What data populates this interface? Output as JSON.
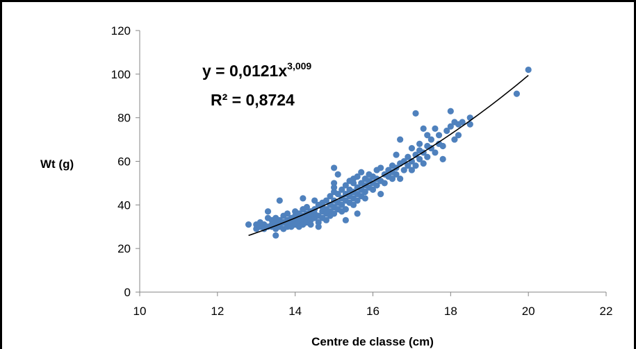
{
  "chart_data": {
    "type": "scatter",
    "title": "",
    "xlabel": "Centre de classe (cm)",
    "ylabel": "Wt (g)",
    "xlim": [
      10,
      22
    ],
    "ylim": [
      0,
      120
    ],
    "x_ticks": [
      "10",
      "12",
      "14",
      "16",
      "18",
      "20",
      "22"
    ],
    "y_ticks": [
      "0",
      "20",
      "40",
      "60",
      "80",
      "100",
      "120"
    ],
    "grid": false,
    "legend": "none",
    "marker_color": "#4F81BD",
    "trendline_color": "#000000",
    "annotations": {
      "equation_base": "y = 0,0121x",
      "equation_exponent": "3,009",
      "r2_label": "R² = 0,8724"
    },
    "trendline": {
      "type": "power",
      "a": 0.0121,
      "b": 3.009,
      "x_range": [
        12.8,
        20
      ]
    },
    "series": [
      {
        "points": [
          [
            12.8,
            31
          ],
          [
            13.0,
            29
          ],
          [
            13.0,
            31
          ],
          [
            13.1,
            30
          ],
          [
            13.1,
            32
          ],
          [
            13.2,
            31
          ],
          [
            13.2,
            29
          ],
          [
            13.3,
            34
          ],
          [
            13.3,
            30
          ],
          [
            13.3,
            37
          ],
          [
            13.4,
            33
          ],
          [
            13.4,
            31
          ],
          [
            13.4,
            30
          ],
          [
            13.5,
            32
          ],
          [
            13.5,
            29
          ],
          [
            13.5,
            26
          ],
          [
            13.5,
            34
          ],
          [
            13.6,
            42
          ],
          [
            13.6,
            31
          ],
          [
            13.6,
            33
          ],
          [
            13.6,
            30
          ],
          [
            13.7,
            32
          ],
          [
            13.7,
            35
          ],
          [
            13.7,
            29
          ],
          [
            13.8,
            31
          ],
          [
            13.8,
            33
          ],
          [
            13.8,
            36
          ],
          [
            13.8,
            30
          ],
          [
            13.9,
            34
          ],
          [
            13.9,
            32
          ],
          [
            13.9,
            30
          ],
          [
            14.0,
            31
          ],
          [
            14.0,
            35
          ],
          [
            14.0,
            33
          ],
          [
            14.0,
            37
          ],
          [
            14.1,
            32
          ],
          [
            14.1,
            34
          ],
          [
            14.1,
            30
          ],
          [
            14.1,
            36
          ],
          [
            14.2,
            33
          ],
          [
            14.2,
            38
          ],
          [
            14.2,
            31
          ],
          [
            14.2,
            35
          ],
          [
            14.2,
            43
          ],
          [
            14.3,
            32
          ],
          [
            14.3,
            36
          ],
          [
            14.3,
            34
          ],
          [
            14.3,
            39
          ],
          [
            14.4,
            33
          ],
          [
            14.4,
            37
          ],
          [
            14.4,
            35
          ],
          [
            14.4,
            31
          ],
          [
            14.5,
            38
          ],
          [
            14.5,
            34
          ],
          [
            14.5,
            42
          ],
          [
            14.5,
            36
          ],
          [
            14.6,
            32
          ],
          [
            14.6,
            40
          ],
          [
            14.6,
            35
          ],
          [
            14.6,
            30
          ],
          [
            14.7,
            39
          ],
          [
            14.7,
            37
          ],
          [
            14.7,
            41
          ],
          [
            14.7,
            34
          ],
          [
            14.8,
            38
          ],
          [
            14.8,
            36
          ],
          [
            14.8,
            42
          ],
          [
            14.8,
            33
          ],
          [
            14.9,
            40
          ],
          [
            14.9,
            37
          ],
          [
            14.9,
            44
          ],
          [
            14.9,
            35
          ],
          [
            15.0,
            39
          ],
          [
            15.0,
            42
          ],
          [
            15.0,
            46
          ],
          [
            15.0,
            57
          ],
          [
            15.0,
            48
          ],
          [
            15.0,
            36
          ],
          [
            15.0,
            50
          ],
          [
            15.1,
            41
          ],
          [
            15.1,
            38
          ],
          [
            15.1,
            45
          ],
          [
            15.1,
            54
          ],
          [
            15.2,
            40
          ],
          [
            15.2,
            43
          ],
          [
            15.2,
            47
          ],
          [
            15.2,
            37
          ],
          [
            15.3,
            42
          ],
          [
            15.3,
            45
          ],
          [
            15.3,
            49
          ],
          [
            15.3,
            38
          ],
          [
            15.3,
            33
          ],
          [
            15.4,
            44
          ],
          [
            15.4,
            41
          ],
          [
            15.4,
            47
          ],
          [
            15.4,
            51
          ],
          [
            15.5,
            43
          ],
          [
            15.5,
            46
          ],
          [
            15.5,
            50
          ],
          [
            15.5,
            40
          ],
          [
            15.5,
            52
          ],
          [
            15.6,
            45
          ],
          [
            15.6,
            48
          ],
          [
            15.6,
            53
          ],
          [
            15.6,
            42
          ],
          [
            15.6,
            36
          ],
          [
            15.7,
            47
          ],
          [
            15.7,
            44
          ],
          [
            15.7,
            50
          ],
          [
            15.7,
            55
          ],
          [
            15.8,
            46
          ],
          [
            15.8,
            49
          ],
          [
            15.8,
            52
          ],
          [
            15.8,
            43
          ],
          [
            15.9,
            48
          ],
          [
            15.9,
            51
          ],
          [
            15.9,
            54
          ],
          [
            16.0,
            50
          ],
          [
            16.0,
            47
          ],
          [
            16.0,
            53
          ],
          [
            16.1,
            49
          ],
          [
            16.1,
            52
          ],
          [
            16.1,
            56
          ],
          [
            16.2,
            45
          ],
          [
            16.2,
            51
          ],
          [
            16.2,
            57
          ],
          [
            16.3,
            50
          ],
          [
            16.3,
            54
          ],
          [
            16.4,
            53
          ],
          [
            16.4,
            56
          ],
          [
            16.5,
            52
          ],
          [
            16.5,
            55
          ],
          [
            16.5,
            58
          ],
          [
            16.6,
            54
          ],
          [
            16.6,
            57
          ],
          [
            16.6,
            63
          ],
          [
            16.7,
            52
          ],
          [
            16.7,
            59
          ],
          [
            16.7,
            70
          ],
          [
            16.8,
            56
          ],
          [
            16.8,
            60
          ],
          [
            16.9,
            58
          ],
          [
            16.9,
            62
          ],
          [
            17.0,
            56
          ],
          [
            17.0,
            60
          ],
          [
            17.0,
            66
          ],
          [
            17.1,
            82
          ],
          [
            17.1,
            63
          ],
          [
            17.1,
            58
          ],
          [
            17.2,
            65
          ],
          [
            17.2,
            61
          ],
          [
            17.2,
            68
          ],
          [
            17.3,
            75
          ],
          [
            17.3,
            64
          ],
          [
            17.3,
            59
          ],
          [
            17.4,
            67
          ],
          [
            17.4,
            72
          ],
          [
            17.4,
            62
          ],
          [
            17.5,
            70
          ],
          [
            17.5,
            66
          ],
          [
            17.6,
            75
          ],
          [
            17.6,
            64
          ],
          [
            17.7,
            72
          ],
          [
            17.7,
            68
          ],
          [
            17.8,
            61
          ],
          [
            17.8,
            67
          ],
          [
            17.9,
            74
          ],
          [
            18.0,
            83
          ],
          [
            18.0,
            76
          ],
          [
            18.1,
            78
          ],
          [
            18.1,
            70
          ],
          [
            18.2,
            77
          ],
          [
            18.2,
            72
          ],
          [
            18.3,
            78
          ],
          [
            18.5,
            80
          ],
          [
            18.5,
            77
          ],
          [
            19.7,
            91
          ],
          [
            20.0,
            102
          ]
        ]
      }
    ]
  }
}
